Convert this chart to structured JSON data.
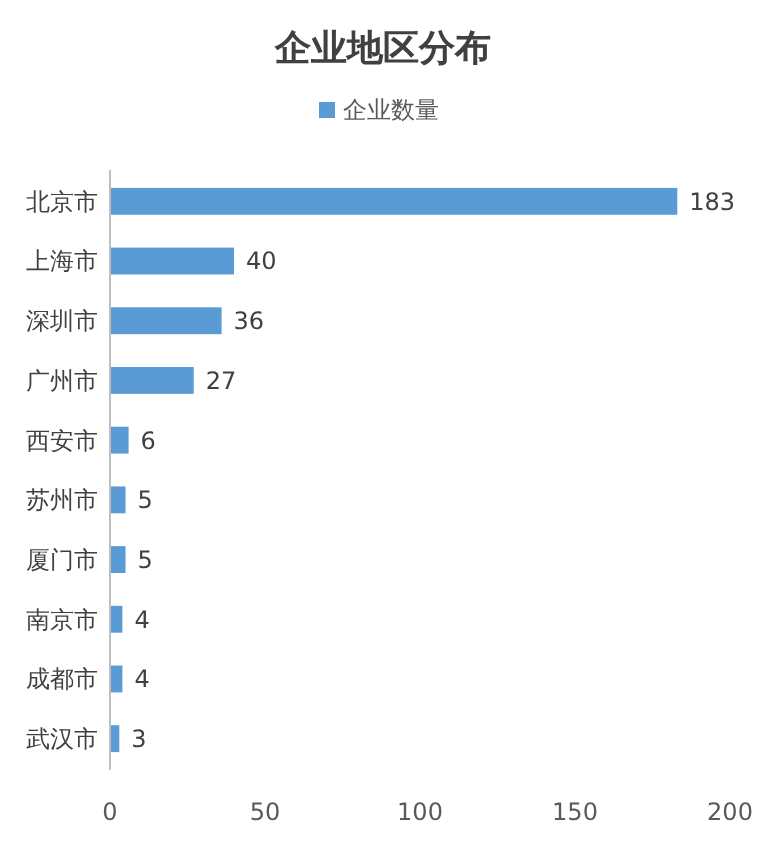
{
  "chart_data": {
    "type": "bar",
    "title": "企业地区分布",
    "orientation": "horizontal",
    "categories": [
      "北京市",
      "上海市",
      "深圳市",
      "广州市",
      "西安市",
      "苏州市",
      "厦门市",
      "南京市",
      "成都市",
      "武汉市"
    ],
    "series": [
      {
        "name": "企业数量",
        "color": "#5b9bd5",
        "values": [
          183,
          40,
          36,
          27,
          6,
          5,
          5,
          4,
          4,
          3
        ]
      }
    ],
    "xlim": [
      0,
      200
    ],
    "xticks": [
      0,
      50,
      100,
      150,
      200
    ],
    "data_labels": true,
    "legend": "top",
    "grid": false
  }
}
